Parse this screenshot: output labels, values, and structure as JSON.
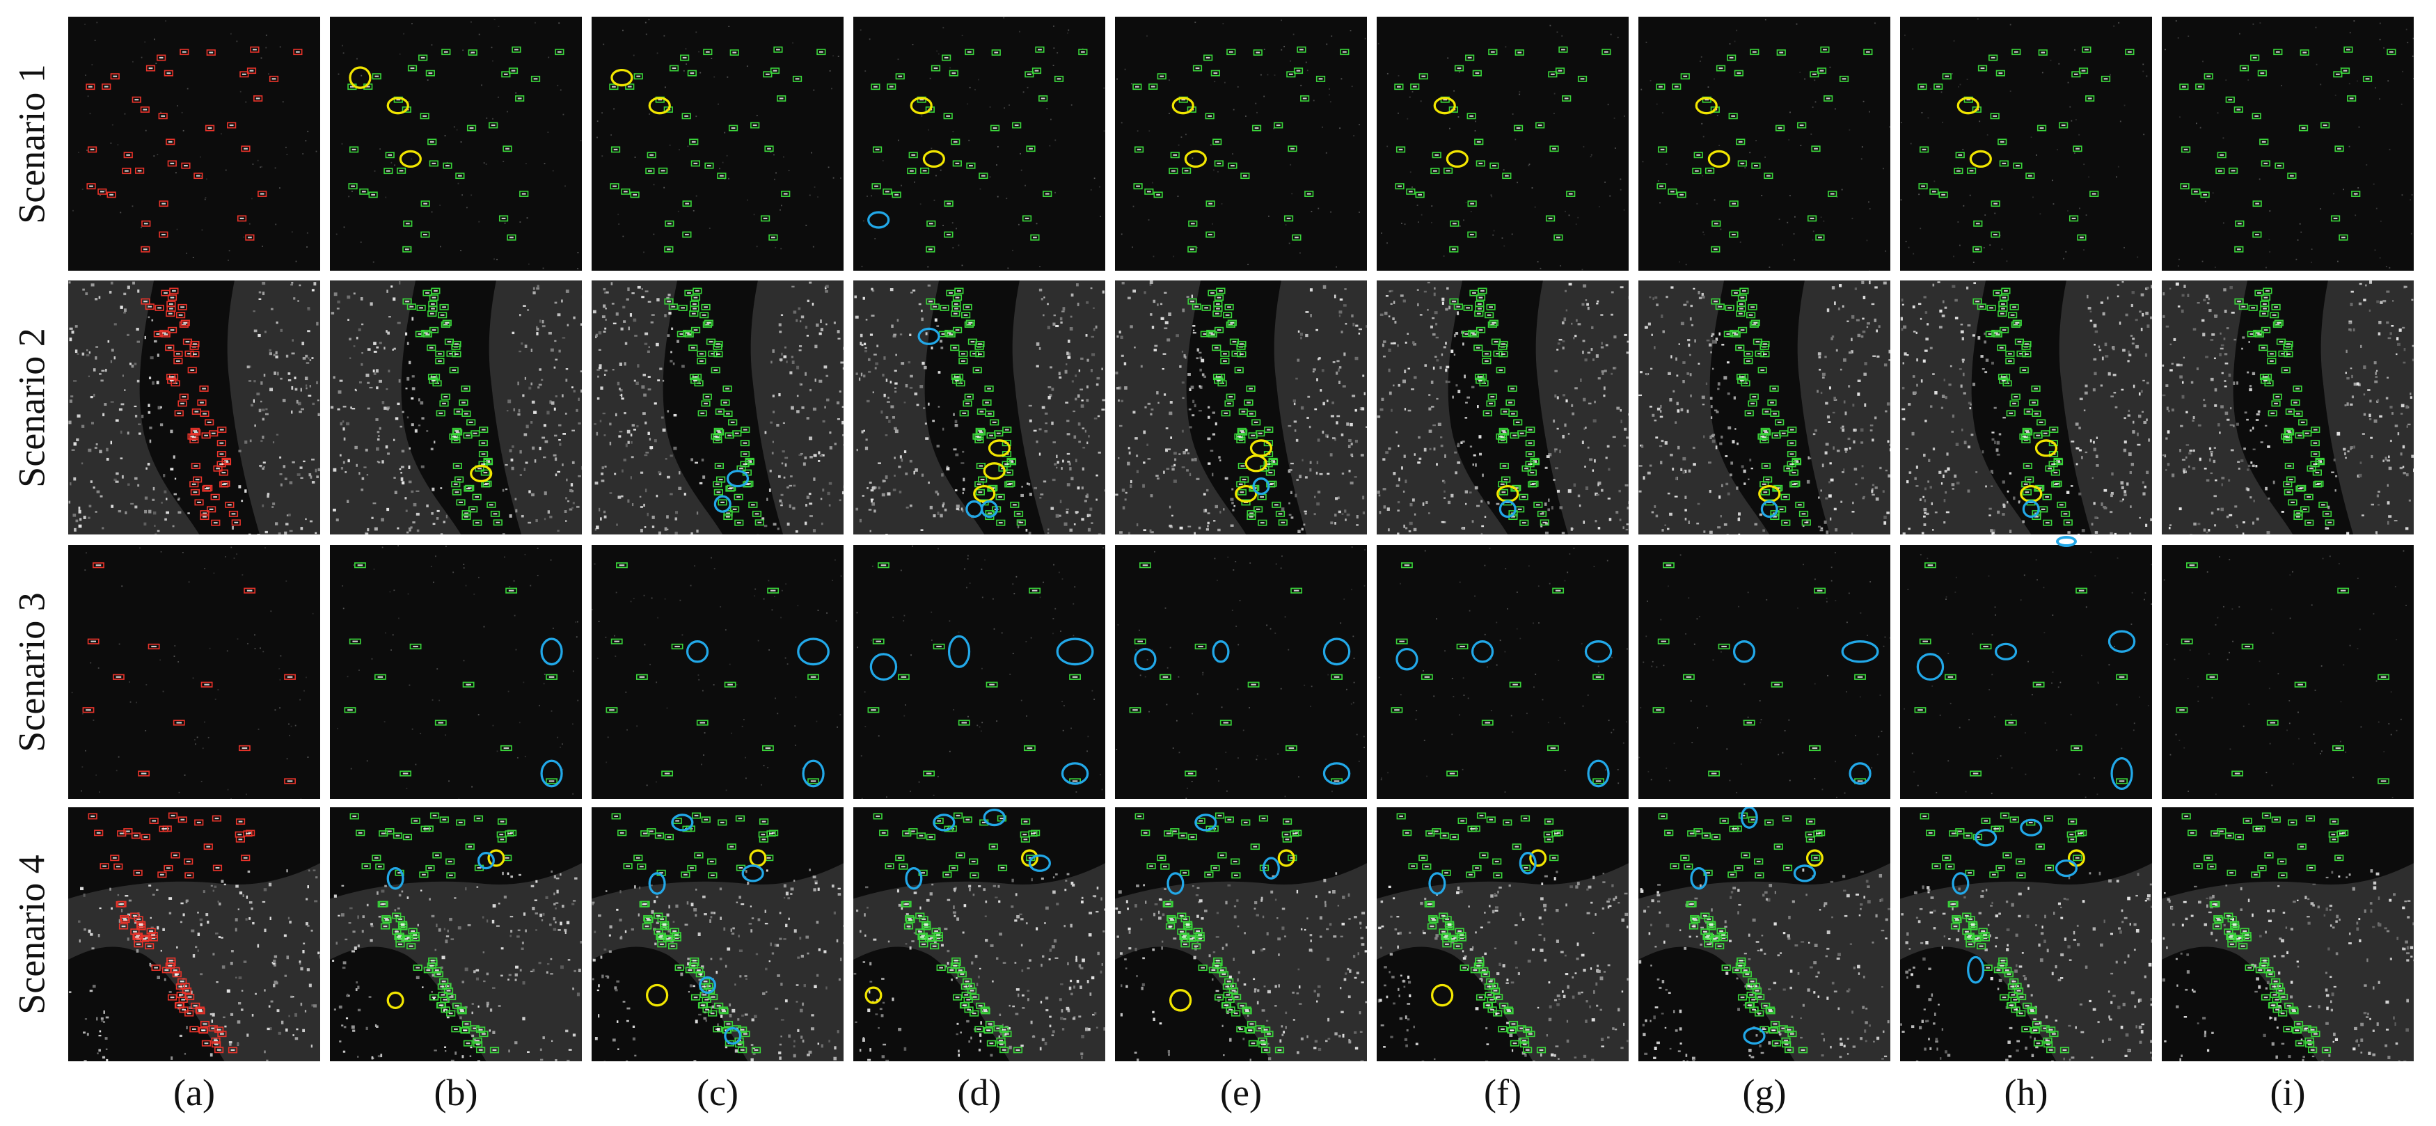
{
  "figure": {
    "row_labels": [
      "Scenario 1",
      "Scenario 2",
      "Scenario 3",
      "Scenario 4"
    ],
    "column_labels": [
      "(a)",
      "(b)",
      "(c)",
      "(d)",
      "(e)",
      "(f)",
      "(g)",
      "(h)",
      "(i)"
    ],
    "colors": {
      "ground_truth_box": "#e8332a",
      "detection_box": "#39d43a",
      "false_alarm_marker": "#f2e600",
      "missed_detection_marker": "#22a8e8",
      "sea_background": "#0c0c0c",
      "land_clutter": "#8a8a8a"
    },
    "panel_content": {
      "column_a": "ground-truth boxes",
      "columns_b_to_i": "detection boxes with error markers"
    }
  }
}
